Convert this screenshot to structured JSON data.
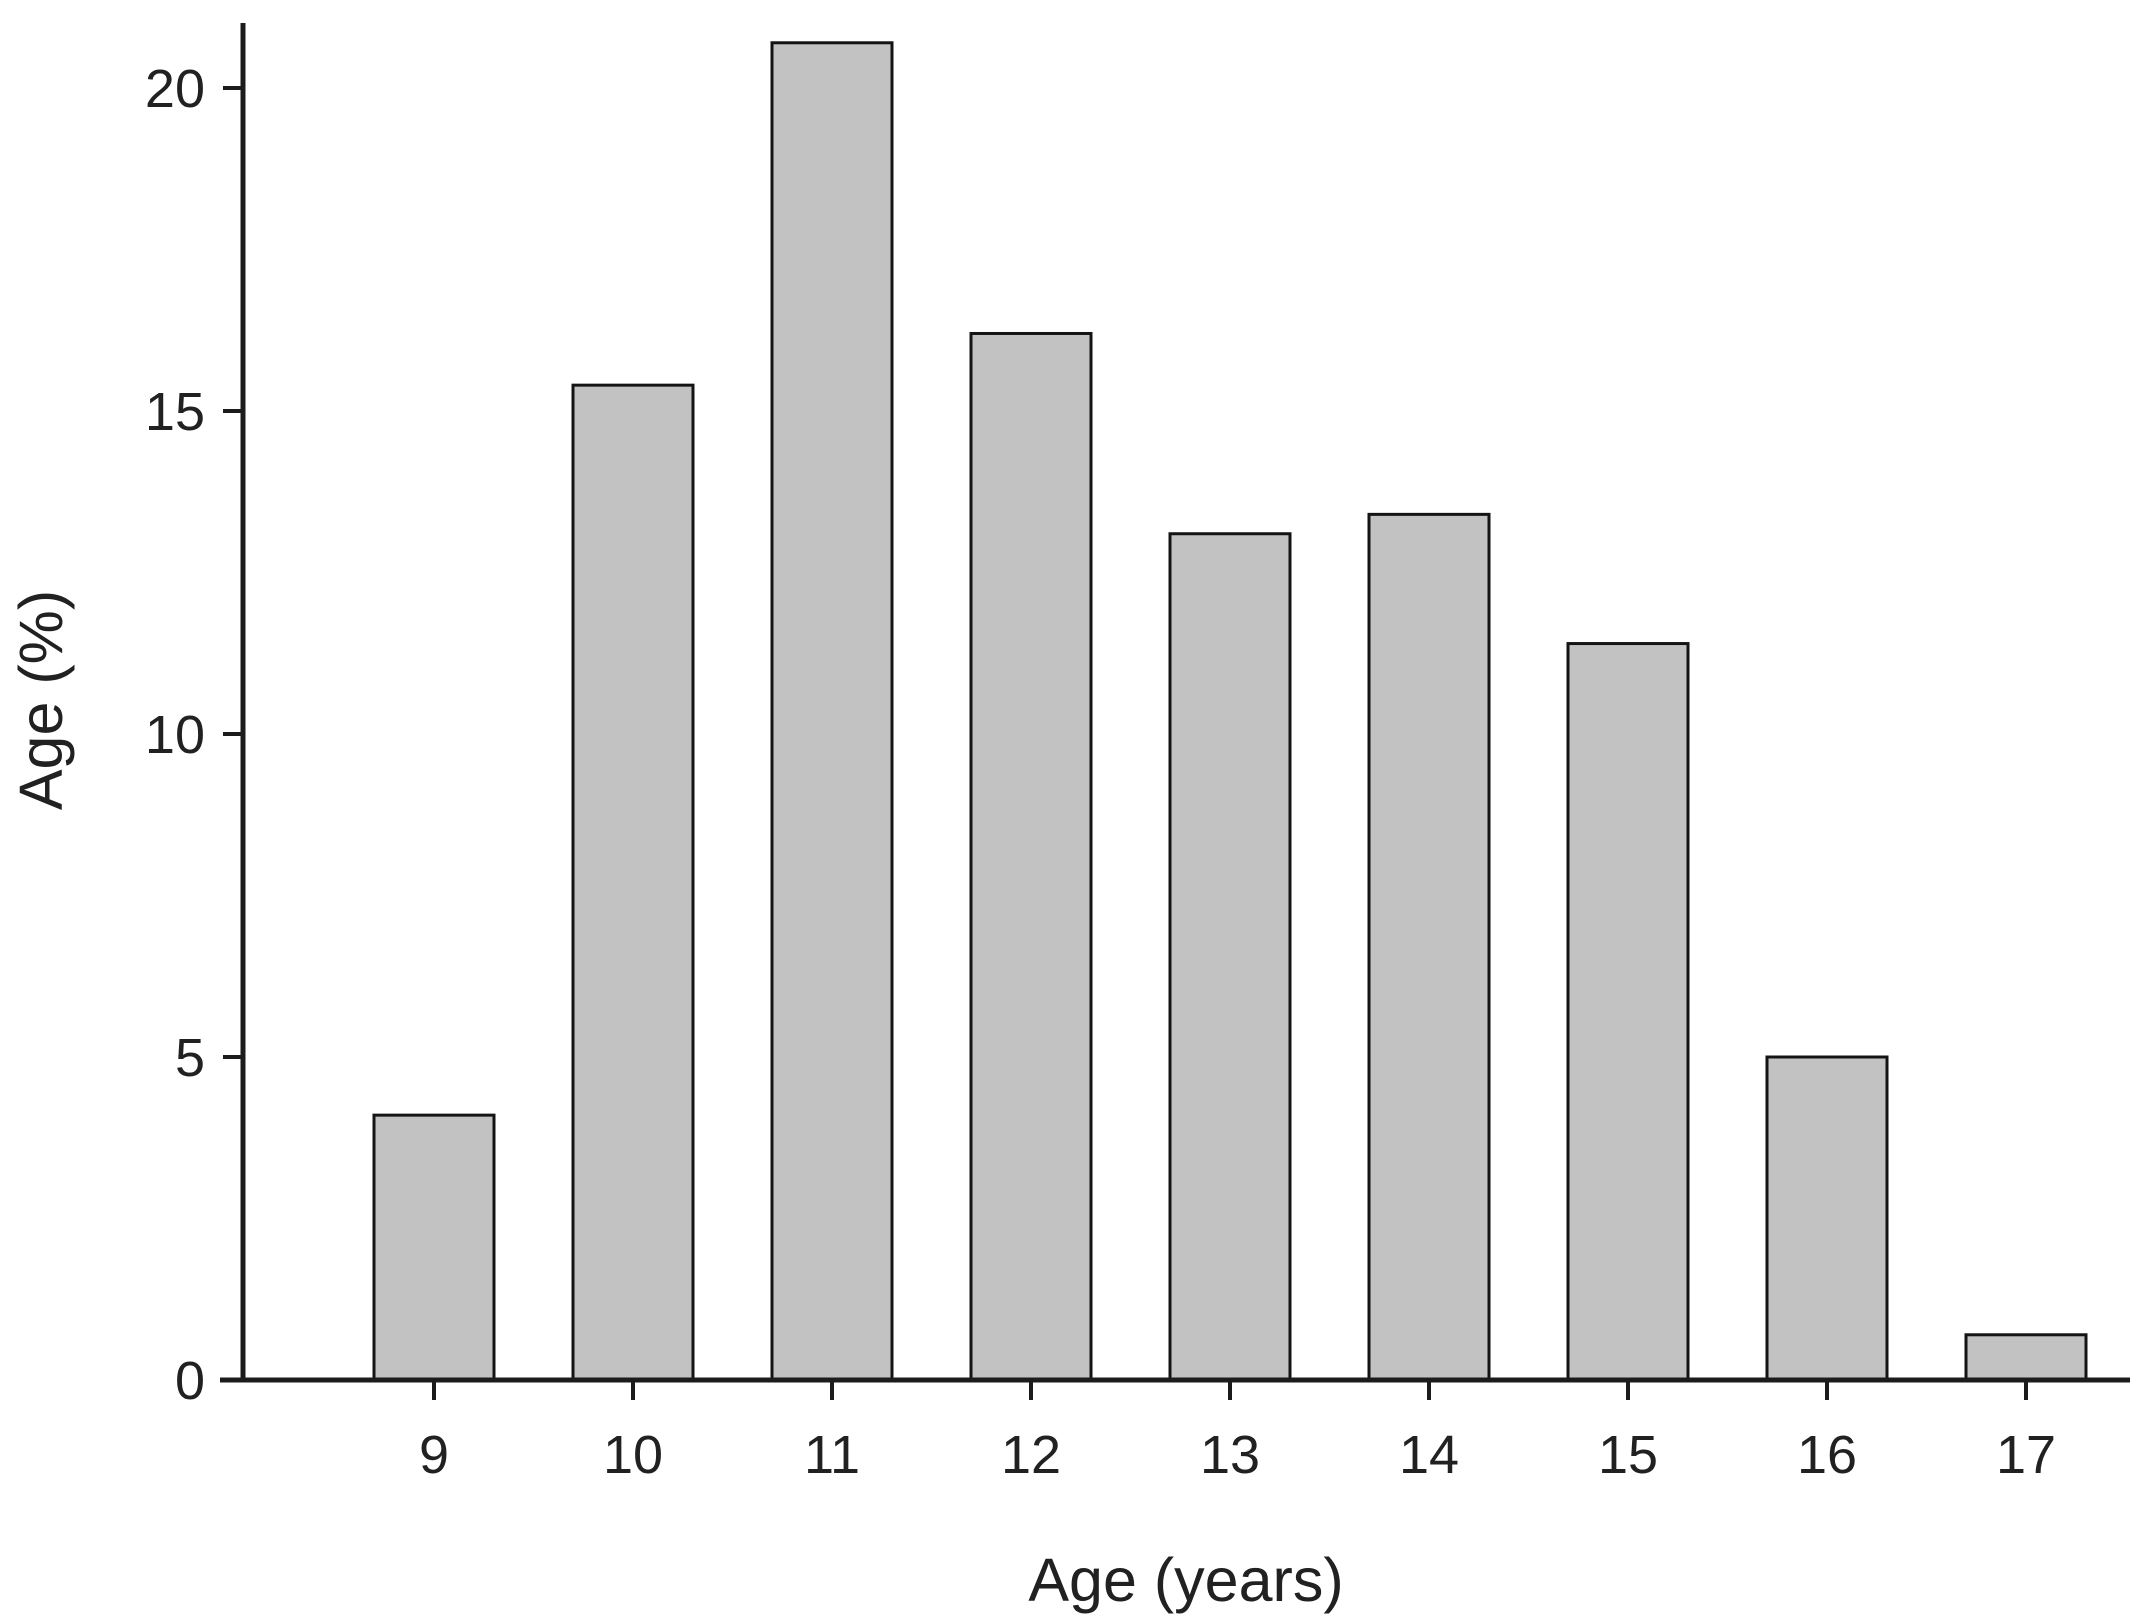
{
  "chart_data": {
    "type": "bar",
    "title": "",
    "categories": [
      "9",
      "10",
      "11",
      "12",
      "13",
      "14",
      "15",
      "16",
      "17"
    ],
    "values": [
      4.1,
      15.4,
      20.7,
      16.2,
      13.1,
      13.4,
      11.4,
      5.0,
      0.7
    ],
    "xlabel": "Age (years)",
    "ylabel": "Age (%)",
    "ylim": [
      0,
      21
    ],
    "yticks": [
      0,
      5,
      10,
      15,
      20
    ],
    "grid": false,
    "legend": "none"
  },
  "colors": {
    "background": "#ffffff",
    "bar_fill": "#c2c2c2",
    "bar_stroke": "#141414",
    "axis": "#1c1c1c",
    "text": "#212121"
  }
}
